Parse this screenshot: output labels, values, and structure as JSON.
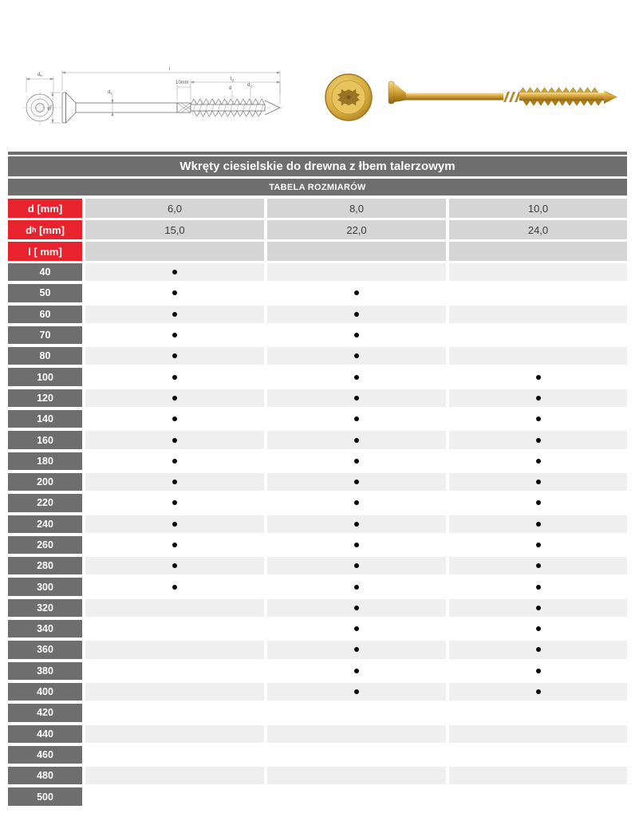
{
  "colors": {
    "header_gray": "#6e6e6e",
    "label_red": "#e8232d",
    "spec_cell_gray": "#d5d5d5",
    "stripe_gray": "#efefef",
    "screw_gold": "#c6922b",
    "dot_black": "#0a0a0a"
  },
  "drawing": {
    "label_head_diameter": {
      "base": "d",
      "sub": "h"
    },
    "label_head_diameter_side": {
      "base": "d",
      "sub": "h"
    },
    "label_shank_diameter": {
      "base": "d",
      "sub": "s"
    },
    "label_total_length": "l",
    "label_knurl_zone": "10mm",
    "label_thread_length": {
      "base": "l",
      "sub": "g"
    },
    "label_thread_diameter": "d",
    "label_core_diameter": {
      "base": "d",
      "sub": "2"
    }
  },
  "table": {
    "title": "Wkręty ciesielskie do drewna z łbem talerzowym",
    "subtitle": "TABELA ROZMIARÓW",
    "spec_rows": [
      {
        "base": "d",
        "sub": "",
        "unit": " [mm]",
        "values": [
          "6,0",
          "8,0",
          "10,0"
        ]
      },
      {
        "base": "d",
        "sub": "h",
        "unit": " [mm]",
        "values": [
          "15,0",
          "22,0",
          "24,0"
        ]
      },
      {
        "base": "l",
        "sub": "",
        "unit": " [ mm]",
        "values": [
          "",
          "",
          ""
        ]
      }
    ],
    "size_rows": [
      {
        "l": "40",
        "cols": [
          true,
          false,
          false
        ]
      },
      {
        "l": "50",
        "cols": [
          true,
          true,
          false
        ]
      },
      {
        "l": "60",
        "cols": [
          true,
          true,
          false
        ]
      },
      {
        "l": "70",
        "cols": [
          true,
          true,
          false
        ]
      },
      {
        "l": "80",
        "cols": [
          true,
          true,
          false
        ]
      },
      {
        "l": "100",
        "cols": [
          true,
          true,
          true
        ]
      },
      {
        "l": "120",
        "cols": [
          true,
          true,
          true
        ]
      },
      {
        "l": "140",
        "cols": [
          true,
          true,
          true
        ]
      },
      {
        "l": "160",
        "cols": [
          true,
          true,
          true
        ]
      },
      {
        "l": "180",
        "cols": [
          true,
          true,
          true
        ]
      },
      {
        "l": "200",
        "cols": [
          true,
          true,
          true
        ]
      },
      {
        "l": "220",
        "cols": [
          true,
          true,
          true
        ]
      },
      {
        "l": "240",
        "cols": [
          true,
          true,
          true
        ]
      },
      {
        "l": "260",
        "cols": [
          true,
          true,
          true
        ]
      },
      {
        "l": "280",
        "cols": [
          true,
          true,
          true
        ]
      },
      {
        "l": "300",
        "cols": [
          true,
          true,
          true
        ]
      },
      {
        "l": "320",
        "cols": [
          false,
          true,
          true
        ]
      },
      {
        "l": "340",
        "cols": [
          false,
          true,
          true
        ]
      },
      {
        "l": "360",
        "cols": [
          false,
          true,
          true
        ]
      },
      {
        "l": "380",
        "cols": [
          false,
          true,
          true
        ]
      },
      {
        "l": "400",
        "cols": [
          false,
          true,
          true
        ]
      },
      {
        "l": "420",
        "cols": [
          false,
          false,
          false
        ]
      },
      {
        "l": "440",
        "cols": [
          false,
          false,
          false
        ]
      },
      {
        "l": "460",
        "cols": [
          false,
          false,
          false
        ]
      },
      {
        "l": "480",
        "cols": [
          false,
          false,
          false
        ]
      },
      {
        "l": "500",
        "cols": [
          false,
          false,
          false
        ]
      }
    ]
  }
}
